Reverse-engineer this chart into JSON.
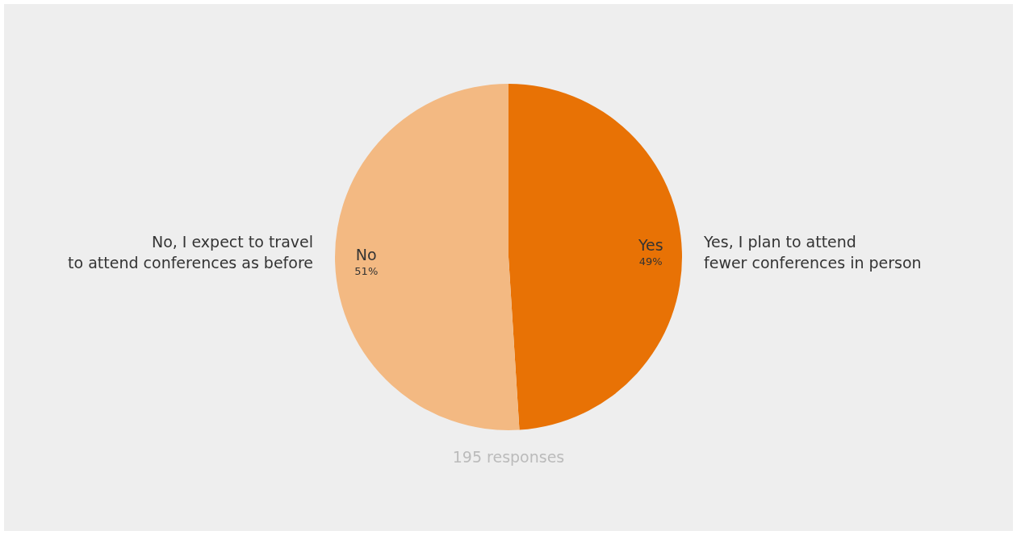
{
  "chart_data": {
    "type": "pie",
    "categories": [
      "Yes",
      "No"
    ],
    "values": [
      49,
      51
    ],
    "colors": [
      "#e87205",
      "#f3b982"
    ],
    "value_labels": [
      "49%",
      "51%"
    ],
    "legend": false,
    "annotations": [
      "Yes, I plan to attend\nfewer conferences in person",
      "No, I expect to travel\nto attend conferences as before",
      "195 responses"
    ]
  }
}
